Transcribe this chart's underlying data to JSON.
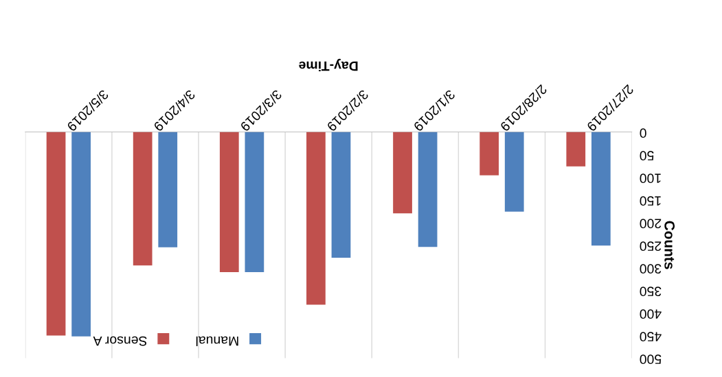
{
  "chart_data": {
    "type": "bar",
    "xlabel": "Day-Time",
    "ylabel": "Counts",
    "categories": [
      "3/5/2019",
      "3/4/2019",
      "3/3/2019",
      "3/2/2019",
      "3/1/2019",
      "2/28/2019",
      "2/27/2019"
    ],
    "series": [
      {
        "name": "Manual",
        "color": "#4f81bd",
        "values": [
          452,
          255,
          310,
          278,
          254,
          176,
          251
        ]
      },
      {
        "name": "Sensor A",
        "color": "#c0504d",
        "values": [
          450,
          295,
          310,
          382,
          180,
          96,
          76
        ]
      }
    ],
    "ylim": [
      500,
      0
    ],
    "yticks": [
      0,
      50,
      100,
      150,
      200,
      250,
      300,
      350,
      400,
      450,
      500
    ],
    "grid": "x",
    "legend": "bottom"
  }
}
